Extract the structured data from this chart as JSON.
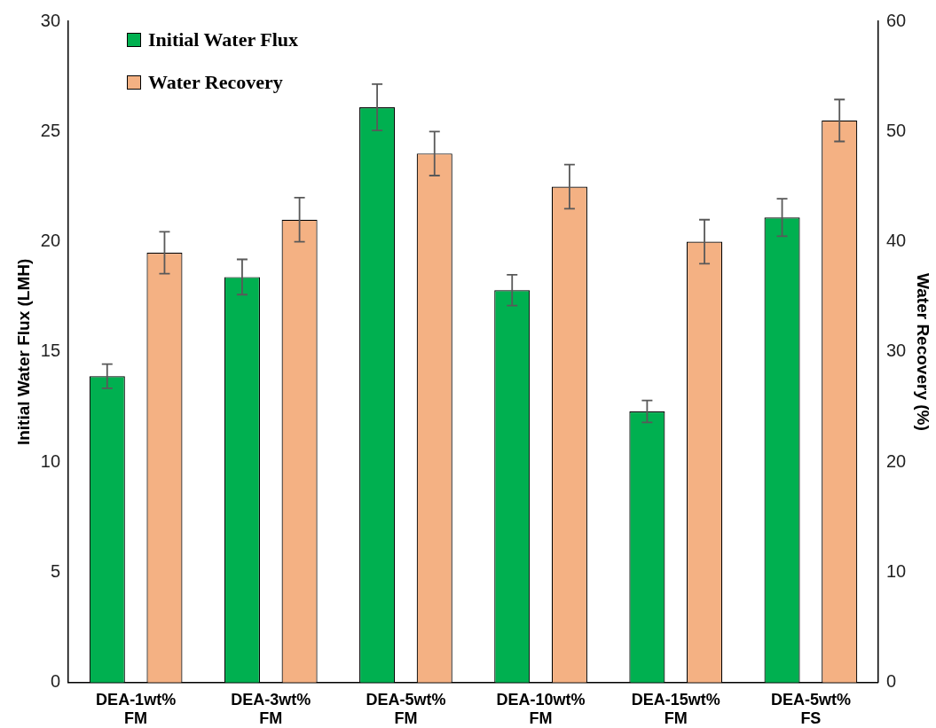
{
  "chart_data": {
    "type": "bar",
    "categories": [
      "DEA-1wt% FM",
      "DEA-3wt% FM",
      "DEA-5wt% FM",
      "DEA-10wt% FM",
      "DEA-15wt% FM",
      "DEA-5wt% FS"
    ],
    "ylabel": "Initial Water Flux (LMH)",
    "y2label": "Water Recovery (%)",
    "ylim": [
      0,
      30
    ],
    "yticks": [
      0,
      5,
      10,
      15,
      20,
      25,
      30
    ],
    "y2lim": [
      0,
      60
    ],
    "y2ticks": [
      0,
      10,
      20,
      30,
      40,
      50,
      60
    ],
    "legend": "top left",
    "grid": false,
    "series": [
      {
        "name": "Initial Water Flux",
        "color": "#00b050",
        "values": [
          13.9,
          18.4,
          26.1,
          17.8,
          12.3,
          21.1
        ],
        "errors": [
          0.55,
          0.8,
          1.05,
          0.7,
          0.5,
          0.85
        ]
      },
      {
        "name": "Water Recovery",
        "color": "#f4b183",
        "axis": "y2",
        "values": [
          39,
          42,
          48,
          45,
          40,
          51
        ],
        "errors": [
          1.9,
          2,
          2,
          2,
          2,
          1.9
        ]
      }
    ]
  }
}
